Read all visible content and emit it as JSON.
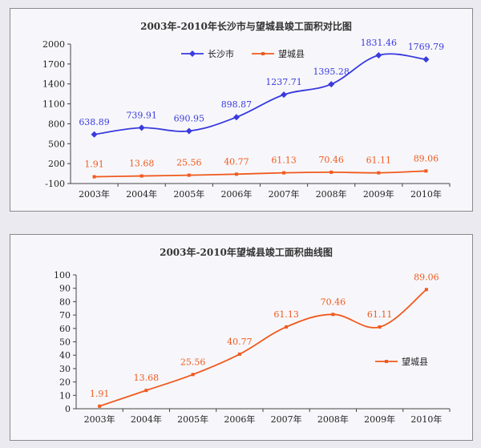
{
  "chart_data": [
    {
      "type": "line",
      "title": "2003年-2010年长沙市与望城县竣工面积对比图",
      "categories": [
        "2003年",
        "2004年",
        "2005年",
        "2006年",
        "2007年",
        "2008年",
        "2009年",
        "2010年"
      ],
      "yticks": [
        "2000",
        "1700",
        "1400",
        "1100",
        "800",
        "500",
        "200",
        "-100"
      ],
      "ylim": [
        -100,
        2000
      ],
      "legend_position": "top-center",
      "grid": false,
      "series": [
        {
          "name": "长沙市",
          "color": "#3a3adf",
          "values": [
            638.89,
            739.91,
            690.95,
            898.87,
            1237.71,
            1395.28,
            1831.46,
            1769.79
          ],
          "labels": [
            "638.89",
            "739.91",
            "690.95",
            "898.87",
            "1237.71",
            "1395.28",
            "1831.46",
            "1769.79"
          ]
        },
        {
          "name": "望城县",
          "color": "#f05a1e",
          "values": [
            1.91,
            13.68,
            25.56,
            40.77,
            61.13,
            70.46,
            61.11,
            89.06
          ],
          "labels": [
            "1.91",
            "13.68",
            "25.56",
            "40.77",
            "61.13",
            "70.46",
            "61.11",
            "89.06"
          ]
        }
      ]
    },
    {
      "type": "line",
      "title": "2003年-2010年望城县竣工面积曲线图",
      "categories": [
        "2003年",
        "2004年",
        "2005年",
        "2006年",
        "2007年",
        "2008年",
        "2009年",
        "2010年"
      ],
      "yticks": [
        "100",
        "90",
        "80",
        "70",
        "60",
        "50",
        "40",
        "30",
        "20",
        "10",
        "0"
      ],
      "ylim": [
        0,
        100
      ],
      "legend_position": "right",
      "grid": false,
      "series": [
        {
          "name": "望城县",
          "color": "#f05a1e",
          "values": [
            1.91,
            13.68,
            25.56,
            40.77,
            61.13,
            70.46,
            61.11,
            89.06
          ],
          "labels": [
            "1.91",
            "13.68",
            "25.56",
            "40.77",
            "61.13",
            "70.46",
            "61.11",
            "89.06"
          ]
        }
      ]
    }
  ]
}
